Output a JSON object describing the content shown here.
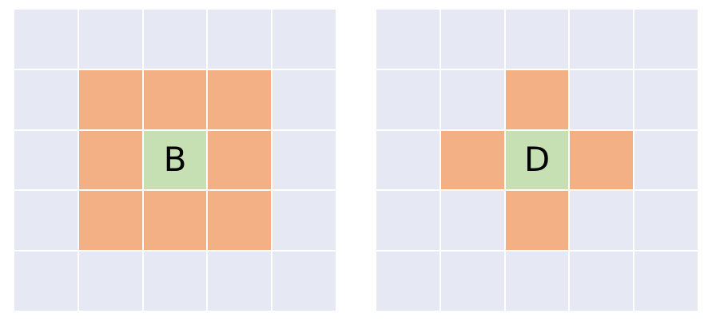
{
  "colors": {
    "empty": "#e6e8f3",
    "neighbor": "#f3b084",
    "center": "#c6e0b4",
    "grid_line": "#ffffff"
  },
  "grids": [
    {
      "center_label": "B",
      "rows": [
        [
          "empty",
          "empty",
          "empty",
          "empty",
          "empty"
        ],
        [
          "empty",
          "neighbor",
          "neighbor",
          "neighbor",
          "empty"
        ],
        [
          "empty",
          "neighbor",
          "center",
          "neighbor",
          "empty"
        ],
        [
          "empty",
          "neighbor",
          "neighbor",
          "neighbor",
          "empty"
        ],
        [
          "empty",
          "empty",
          "empty",
          "empty",
          "empty"
        ]
      ]
    },
    {
      "center_label": "D",
      "rows": [
        [
          "empty",
          "empty",
          "empty",
          "empty",
          "empty"
        ],
        [
          "empty",
          "empty",
          "neighbor",
          "empty",
          "empty"
        ],
        [
          "empty",
          "neighbor",
          "center",
          "neighbor",
          "empty"
        ],
        [
          "empty",
          "empty",
          "neighbor",
          "empty",
          "empty"
        ],
        [
          "empty",
          "empty",
          "empty",
          "empty",
          "empty"
        ]
      ]
    }
  ]
}
